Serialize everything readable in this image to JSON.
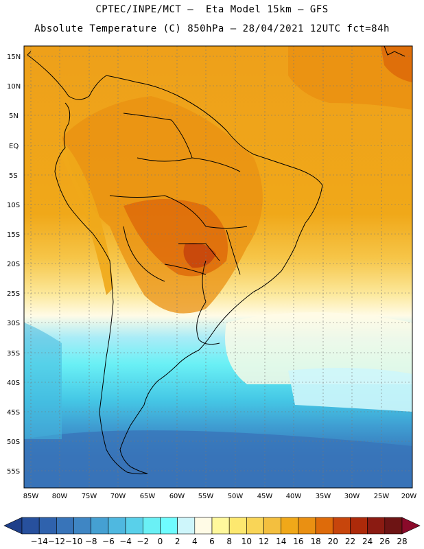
{
  "title_line1": "CPTEC/INPE/MCT —  Eta Model 15km — GFS",
  "title_line2": "Absolute Temperature (C) 850hPa — 28/04/2021 12UTC fct=84h",
  "lat_labels": [
    "15N",
    "10N",
    "5N",
    "EQ",
    "5S",
    "10S",
    "15S",
    "20S",
    "25S",
    "30S",
    "35S",
    "40S",
    "45S",
    "50S",
    "55S"
  ],
  "lon_labels": [
    "85W",
    "80W",
    "75W",
    "70W",
    "65W",
    "60W",
    "55W",
    "50W",
    "45W",
    "40W",
    "35W",
    "30W",
    "25W",
    "20W"
  ],
  "colorbar": {
    "labels": [
      "-14",
      "-12",
      "-10",
      "-8",
      "-6",
      "-4",
      "-2",
      "0",
      "2",
      "4",
      "6",
      "8",
      "10",
      "12",
      "14",
      "16",
      "18",
      "20",
      "22",
      "24",
      "26",
      "28"
    ],
    "colors": [
      "#1e3f8a",
      "#27509d",
      "#2f62ad",
      "#3874b9",
      "#3f86c4",
      "#45a0d2",
      "#4fb8e0",
      "#59d0ea",
      "#6af0f5",
      "#6ffcff",
      "#cef6fb",
      "#fffbe6",
      "#fff89c",
      "#fde86f",
      "#f9d557",
      "#f3bf3f",
      "#f0a819",
      "#ea9012",
      "#de6b0a",
      "#c7450c",
      "#ad2a0a",
      "#8b1b12",
      "#6d1414",
      "#8a0a2a"
    ]
  }
}
